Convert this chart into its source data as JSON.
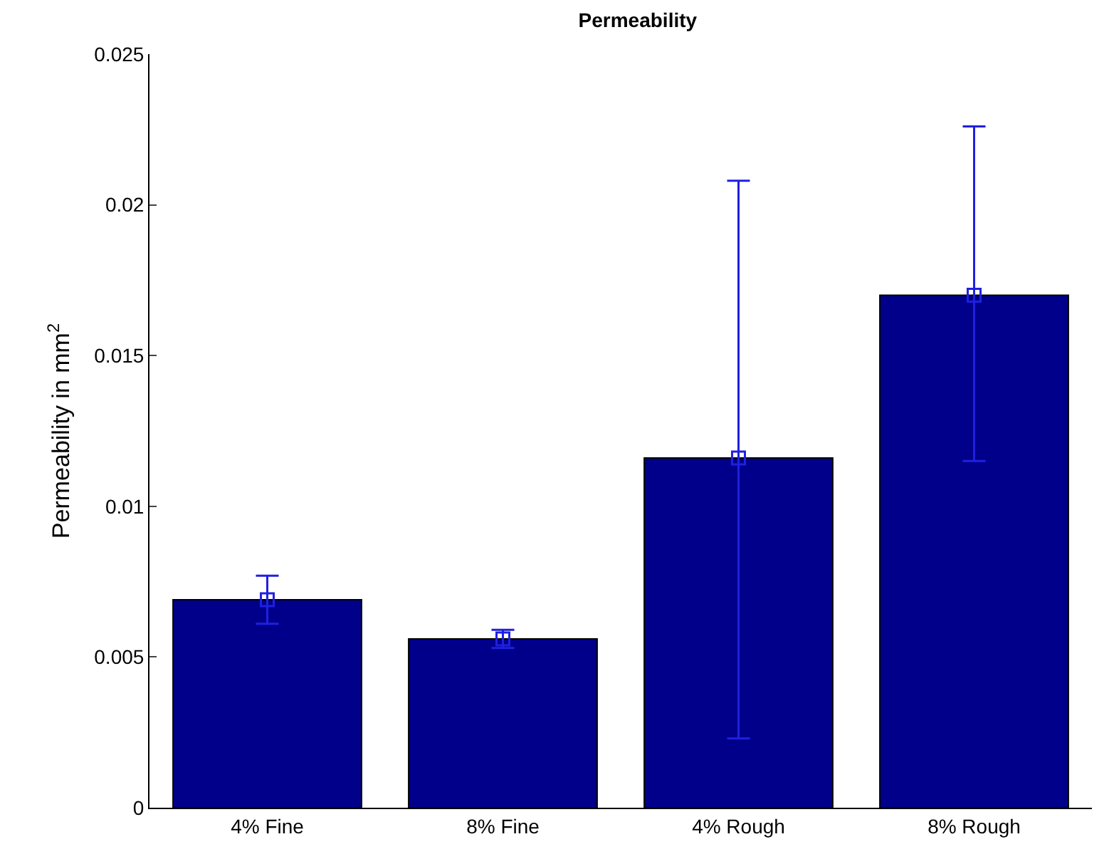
{
  "chart_data": {
    "type": "bar",
    "title": "Permeability",
    "ylabel": "Permeability in mm$^{2}$",
    "categories": [
      "4% Fine",
      "8% Fine",
      "4% Rough",
      "8% Rough"
    ],
    "series": [
      {
        "color": "#00008b",
        "values": [
          0.0069,
          0.0056,
          0.0116,
          0.017
        ]
      },
      {
        "type": "scatter",
        "x": [
          "4% Fine",
          "8% Fine",
          "4% Rough",
          "8% Rough"
        ],
        "color": "#2020e0",
        "values": [
          0.0069,
          0.0056,
          0.0116,
          0.017
        ],
        "errors": [
          [
            0.0061,
            0.0077
          ],
          [
            0.0053,
            0.0059
          ],
          [
            0.0023,
            0.0208
          ],
          [
            0.0115,
            0.0226
          ]
        ]
      }
    ],
    "marker": "square",
    "ylim": [
      0,
      0.025
    ],
    "yticks": [
      0,
      0.005,
      0.01,
      0.015,
      0.02,
      0.025
    ],
    "grid": false
  }
}
